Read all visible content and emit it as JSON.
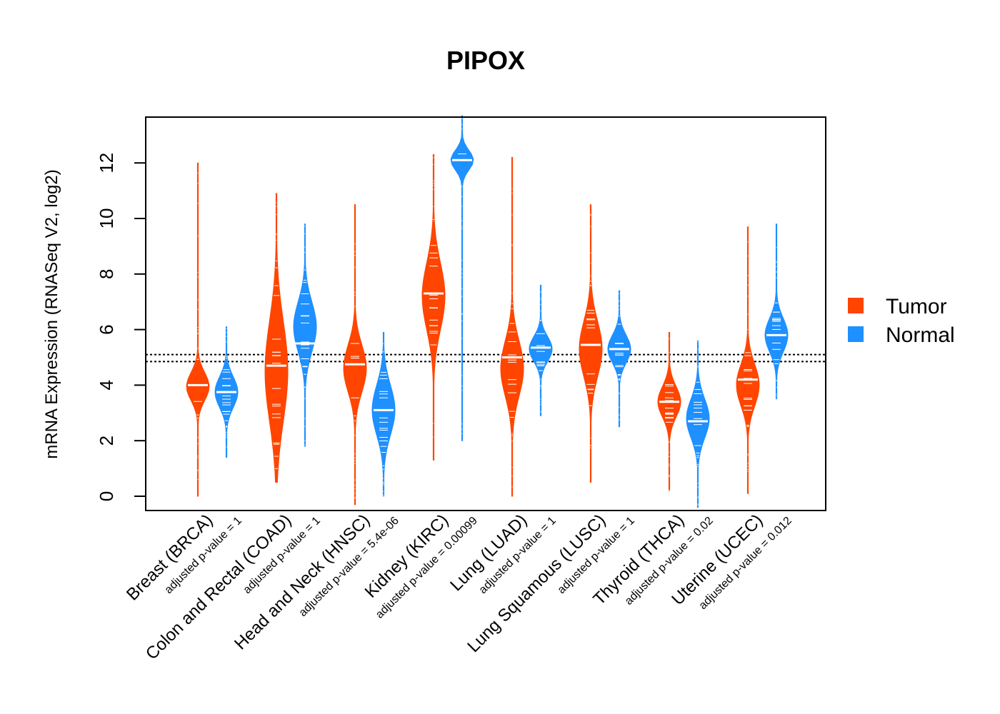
{
  "chart_data": {
    "type": "violin",
    "title": "PIPOX",
    "xlabel": "",
    "ylabel": "mRNA Expression (RNASeq V2, log2)",
    "ylim": [
      -0.5,
      13.7
    ],
    "yticks": [
      "0",
      "2",
      "4",
      "6",
      "8",
      "10",
      "12"
    ],
    "reference_lines": [
      4.85,
      5.1
    ],
    "legend": {
      "position": "right",
      "items": [
        {
          "label": "Tumor",
          "color": "#FF4500"
        },
        {
          "label": "Normal",
          "color": "#1E90FF"
        }
      ]
    },
    "categories": [
      {
        "name": "Breast (BRCA)",
        "pvalue_label": "adjusted p-value = 1",
        "tumor": {
          "min": 0.0,
          "max": 12.0,
          "median": 4.0,
          "spread": 0.5,
          "center": 3.95
        },
        "normal": {
          "min": 1.4,
          "max": 6.1,
          "median": 3.75,
          "spread": 0.55,
          "center": 3.75
        }
      },
      {
        "name": "Colon and Rectal (COAD)",
        "pvalue_label": "adjusted p-value = 1",
        "tumor": {
          "min": 0.5,
          "max": 10.9,
          "median": 4.7,
          "spread": 1.8,
          "center": 4.5
        },
        "normal": {
          "min": 1.8,
          "max": 9.8,
          "median": 5.5,
          "spread": 0.9,
          "center": 6.1
        }
      },
      {
        "name": "Head and Neck (HNSC)",
        "pvalue_label": "adjusted p-value = 5.4e-06",
        "tumor": {
          "min": -0.3,
          "max": 10.5,
          "median": 4.75,
          "spread": 0.85,
          "center": 4.6
        },
        "normal": {
          "min": 0.0,
          "max": 5.9,
          "median": 3.1,
          "spread": 0.9,
          "center": 3.1
        }
      },
      {
        "name": "Kidney (KIRC)",
        "pvalue_label": "adjusted p-value = 0.00099",
        "tumor": {
          "min": 1.3,
          "max": 12.3,
          "median": 7.3,
          "spread": 1.2,
          "center": 7.2
        },
        "normal": {
          "min": 2.0,
          "max": 13.7,
          "median": 12.1,
          "spread": 0.35,
          "center": 12.1
        }
      },
      {
        "name": "Lung (LUAD)",
        "pvalue_label": "adjusted p-value = 1",
        "tumor": {
          "min": 0.0,
          "max": 12.2,
          "median": 5.0,
          "spread": 1.0,
          "center": 4.6
        },
        "normal": {
          "min": 2.9,
          "max": 7.6,
          "median": 5.35,
          "spread": 0.45,
          "center": 5.3
        }
      },
      {
        "name": "Lung Squamous (LUSC)",
        "pvalue_label": "adjusted p-value = 1",
        "tumor": {
          "min": 0.5,
          "max": 10.5,
          "median": 5.45,
          "spread": 1.0,
          "center": 5.3
        },
        "normal": {
          "min": 2.5,
          "max": 7.4,
          "median": 5.3,
          "spread": 0.5,
          "center": 5.3
        }
      },
      {
        "name": "Thyroid (THCA)",
        "pvalue_label": "adjusted p-value = 0.02",
        "tumor": {
          "min": 0.2,
          "max": 5.9,
          "median": 3.4,
          "spread": 0.55,
          "center": 3.4
        },
        "normal": {
          "min": -0.4,
          "max": 5.6,
          "median": 2.7,
          "spread": 0.7,
          "center": 2.8
        }
      },
      {
        "name": "Uterine (UCEC)",
        "pvalue_label": "adjusted p-value = 0.012",
        "tumor": {
          "min": 0.1,
          "max": 9.7,
          "median": 4.2,
          "spread": 0.75,
          "center": 4.0
        },
        "normal": {
          "min": 3.5,
          "max": 9.8,
          "median": 5.8,
          "spread": 0.6,
          "center": 5.8
        }
      }
    ]
  }
}
